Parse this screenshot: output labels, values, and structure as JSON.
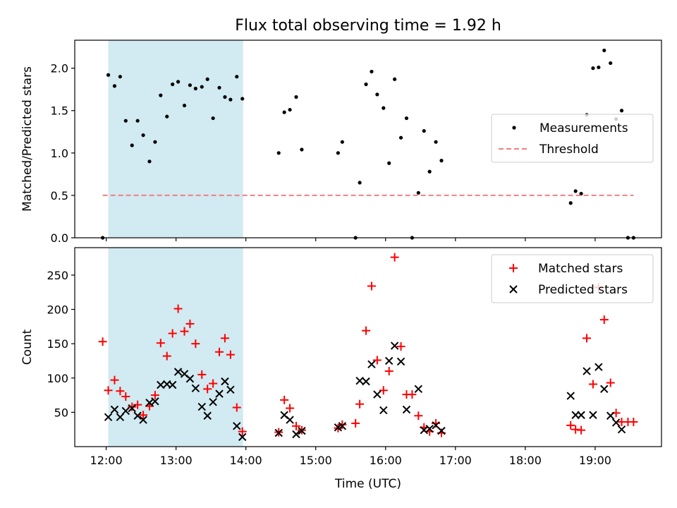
{
  "figure": {
    "title": "Flux total observing time = 1.92 h"
  },
  "colors": {
    "shade": "#add8e6",
    "threshold": "#f08080",
    "matched": "#ff0000",
    "predicted": "#000000",
    "measurement": "#000000"
  },
  "chart_data": [
    {
      "type": "scatter",
      "ylabel": "Matched/Predicted stars",
      "xlim": [
        11.55,
        19.95
      ],
      "ylim": [
        0,
        2.33
      ],
      "yticks": [
        0.0,
        0.5,
        1.0,
        1.5,
        2.0
      ],
      "ytick_labels": [
        "0.0",
        "0.5",
        "1.0",
        "1.5",
        "2.0"
      ],
      "shaded_span": [
        12.03,
        13.96
      ],
      "legend_position": "right",
      "series": [
        {
          "name": "Measurements",
          "kind": "dot",
          "points": [
            [
              11.95,
              0
            ],
            [
              12.03,
              1.92
            ],
            [
              12.12,
              1.79
            ],
            [
              12.2,
              1.9
            ],
            [
              12.28,
              1.38
            ],
            [
              12.37,
              1.09
            ],
            [
              12.45,
              1.38
            ],
            [
              12.53,
              1.21
            ],
            [
              12.62,
              0.9
            ],
            [
              12.7,
              1.13
            ],
            [
              12.78,
              1.68
            ],
            [
              12.87,
              1.43
            ],
            [
              12.95,
              1.81
            ],
            [
              13.03,
              1.84
            ],
            [
              13.12,
              1.56
            ],
            [
              13.2,
              1.8
            ],
            [
              13.28,
              1.76
            ],
            [
              13.37,
              1.78
            ],
            [
              13.45,
              1.87
            ],
            [
              13.53,
              1.41
            ],
            [
              13.62,
              1.77
            ],
            [
              13.7,
              1.66
            ],
            [
              13.78,
              1.63
            ],
            [
              13.87,
              1.9
            ],
            [
              13.95,
              1.64
            ],
            [
              14.47,
              1.0
            ],
            [
              14.55,
              1.48
            ],
            [
              14.63,
              1.51
            ],
            [
              14.72,
              1.66
            ],
            [
              14.8,
              1.04
            ],
            [
              15.32,
              1.0
            ],
            [
              15.38,
              1.13
            ],
            [
              15.57,
              0
            ],
            [
              15.63,
              0.65
            ],
            [
              15.72,
              1.81
            ],
            [
              15.8,
              1.96
            ],
            [
              15.88,
              1.69
            ],
            [
              15.97,
              1.53
            ],
            [
              16.05,
              0.88
            ],
            [
              16.13,
              1.87
            ],
            [
              16.22,
              1.18
            ],
            [
              16.3,
              1.41
            ],
            [
              16.38,
              0
            ],
            [
              16.47,
              0.53
            ],
            [
              16.55,
              1.26
            ],
            [
              16.63,
              0.78
            ],
            [
              16.72,
              1.13
            ],
            [
              16.8,
              0.91
            ],
            [
              18.65,
              0.41
            ],
            [
              18.72,
              0.55
            ],
            [
              18.8,
              0.52
            ],
            [
              18.88,
              1.45
            ],
            [
              18.97,
              2.0
            ],
            [
              19.05,
              2.01
            ],
            [
              19.13,
              2.21
            ],
            [
              19.22,
              2.06
            ],
            [
              19.3,
              1.4
            ],
            [
              19.38,
              1.5
            ],
            [
              19.47,
              0
            ],
            [
              19.55,
              0
            ]
          ]
        },
        {
          "name": "Threshold",
          "kind": "dashed-line",
          "x": [
            11.95,
            19.55
          ],
          "values": [
            0.5,
            0.5
          ]
        }
      ]
    },
    {
      "type": "scatter",
      "xlabel": "Time (UTC)",
      "ylabel": "Count",
      "xlim": [
        11.55,
        19.95
      ],
      "ylim": [
        0,
        290
      ],
      "yticks": [
        50,
        100,
        150,
        200,
        250
      ],
      "ytick_labels": [
        "50",
        "100",
        "150",
        "200",
        "250"
      ],
      "xticks": [
        12,
        13,
        14,
        15,
        16,
        17,
        18,
        19
      ],
      "xtick_labels": [
        "12:00",
        "13:00",
        "14:00",
        "15:00",
        "16:00",
        "17:00",
        "18:00",
        "19:00"
      ],
      "shaded_span": [
        12.03,
        13.96
      ],
      "legend_position": "upper right",
      "series": [
        {
          "name": "Matched stars",
          "kind": "plus",
          "points": [
            [
              11.95,
              153
            ],
            [
              12.03,
              82
            ],
            [
              12.12,
              97
            ],
            [
              12.2,
              81
            ],
            [
              12.28,
              73
            ],
            [
              12.37,
              58
            ],
            [
              12.45,
              61
            ],
            [
              12.53,
              46
            ],
            [
              12.62,
              59
            ],
            [
              12.7,
              75
            ],
            [
              12.78,
              151
            ],
            [
              12.87,
              132
            ],
            [
              12.95,
              165
            ],
            [
              13.03,
              201
            ],
            [
              13.12,
              168
            ],
            [
              13.2,
              179
            ],
            [
              13.28,
              150
            ],
            [
              13.37,
              105
            ],
            [
              13.45,
              84
            ],
            [
              13.53,
              92
            ],
            [
              13.62,
              138
            ],
            [
              13.7,
              158
            ],
            [
              13.78,
              134
            ],
            [
              13.87,
              57
            ],
            [
              13.95,
              22
            ],
            [
              14.47,
              21
            ],
            [
              14.55,
              68
            ],
            [
              14.63,
              56
            ],
            [
              14.72,
              30
            ],
            [
              14.8,
              24
            ],
            [
              15.32,
              27
            ],
            [
              15.38,
              32
            ],
            [
              15.57,
              34
            ],
            [
              15.63,
              62
            ],
            [
              15.72,
              169
            ],
            [
              15.8,
              234
            ],
            [
              15.88,
              126
            ],
            [
              15.97,
              82
            ],
            [
              16.05,
              110
            ],
            [
              16.13,
              276
            ],
            [
              16.22,
              146
            ],
            [
              16.3,
              76
            ],
            [
              16.38,
              76
            ],
            [
              16.47,
              45
            ],
            [
              16.55,
              28
            ],
            [
              16.63,
              22
            ],
            [
              16.72,
              34
            ],
            [
              16.8,
              20
            ],
            [
              18.65,
              31
            ],
            [
              18.72,
              25
            ],
            [
              18.8,
              24
            ],
            [
              18.88,
              158
            ],
            [
              18.97,
              91
            ],
            [
              19.05,
              232
            ],
            [
              19.13,
              185
            ],
            [
              19.22,
              93
            ],
            [
              19.3,
              49
            ],
            [
              19.38,
              36
            ],
            [
              19.47,
              36
            ],
            [
              19.55,
              36
            ]
          ]
        },
        {
          "name": "Predicted stars",
          "kind": "x",
          "points": [
            [
              12.03,
              43
            ],
            [
              12.12,
              54
            ],
            [
              12.2,
              43
            ],
            [
              12.28,
              52
            ],
            [
              12.37,
              56
            ],
            [
              12.45,
              45
            ],
            [
              12.53,
              39
            ],
            [
              12.62,
              64
            ],
            [
              12.7,
              66
            ],
            [
              12.78,
              90
            ],
            [
              12.87,
              91
            ],
            [
              12.95,
              90
            ],
            [
              13.03,
              109
            ],
            [
              13.12,
              106
            ],
            [
              13.2,
              99
            ],
            [
              13.28,
              85
            ],
            [
              13.37,
              58
            ],
            [
              13.45,
              45
            ],
            [
              13.53,
              65
            ],
            [
              13.62,
              77
            ],
            [
              13.7,
              95
            ],
            [
              13.78,
              83
            ],
            [
              13.87,
              30
            ],
            [
              13.95,
              14
            ],
            [
              14.47,
              20
            ],
            [
              14.55,
              46
            ],
            [
              14.63,
              39
            ],
            [
              14.72,
              18
            ],
            [
              14.8,
              23
            ],
            [
              15.32,
              28
            ],
            [
              15.38,
              30
            ],
            [
              15.63,
              96
            ],
            [
              15.72,
              95
            ],
            [
              15.8,
              120
            ],
            [
              15.88,
              76
            ],
            [
              15.97,
              53
            ],
            [
              16.05,
              125
            ],
            [
              16.13,
              147
            ],
            [
              16.22,
              124
            ],
            [
              16.3,
              54
            ],
            [
              16.47,
              84
            ],
            [
              16.55,
              24
            ],
            [
              16.63,
              26
            ],
            [
              16.72,
              31
            ],
            [
              16.8,
              23
            ],
            [
              18.65,
              74
            ],
            [
              18.72,
              46
            ],
            [
              18.8,
              46
            ],
            [
              18.88,
              110
            ],
            [
              18.97,
              46
            ],
            [
              19.05,
              116
            ],
            [
              19.13,
              84
            ],
            [
              19.22,
              45
            ],
            [
              19.3,
              35
            ],
            [
              19.38,
              25
            ]
          ]
        }
      ]
    }
  ]
}
